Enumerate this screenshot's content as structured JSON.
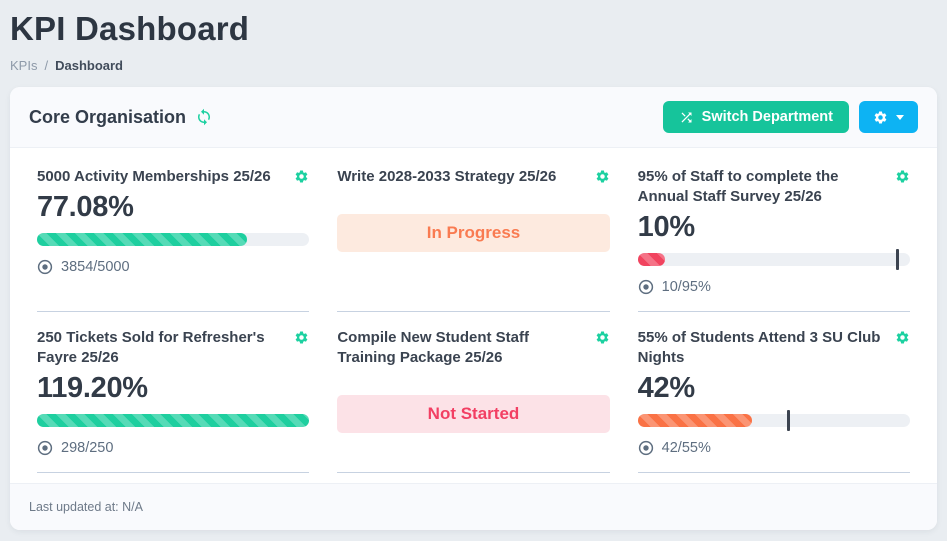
{
  "page": {
    "title": "KPI Dashboard",
    "breadcrumb": {
      "parent": "KPIs",
      "separator": "/",
      "current": "Dashboard"
    }
  },
  "panel": {
    "title": "Core Organisation",
    "refresh_icon": "refresh-icon",
    "switch_button_label": "Switch Department",
    "gear_menu_icon": "gear-icon",
    "footer_text": "Last updated at: N/A"
  },
  "colors": {
    "green": "#1ecf9f",
    "red": "#f1445f",
    "orange": "#fa7245",
    "accent_green_button": "#16c49b",
    "accent_blue_button": "#0db3f3",
    "icon_teal": "#1dd1a1",
    "badge_in_progress_bg": "#fdeadf",
    "badge_in_progress_text": "#f97b51",
    "badge_not_started_bg": "#fce2e7",
    "badge_not_started_text": "#f23f63"
  },
  "tiles": [
    {
      "title": "5000 Activity Memberships 25/26",
      "value": "77.08%",
      "progress_pct": 77.08,
      "marker_pct": null,
      "bar_color": "green",
      "target_text": "3854/5000"
    },
    {
      "title": "Write 2028-2033 Strategy 25/26",
      "status": "In Progress",
      "status_type": "in-progress"
    },
    {
      "title": "95% of Staff to complete the Annual Staff Survey 25/26",
      "value": "10%",
      "progress_pct": 10,
      "marker_pct": 95,
      "bar_color": "red",
      "target_text": "10/95%"
    },
    {
      "title": "250 Tickets Sold for Refresher's Fayre 25/26",
      "value": "119.20%",
      "progress_pct": 100,
      "marker_pct": null,
      "bar_color": "green",
      "target_text": "298/250"
    },
    {
      "title": "Compile New Student Staff Training Package 25/26",
      "status": "Not Started",
      "status_type": "not-started"
    },
    {
      "title": "55% of Students Attend 3 SU Club Nights",
      "value": "42%",
      "progress_pct": 42,
      "marker_pct": 55,
      "bar_color": "orange",
      "target_text": "42/55%"
    }
  ]
}
